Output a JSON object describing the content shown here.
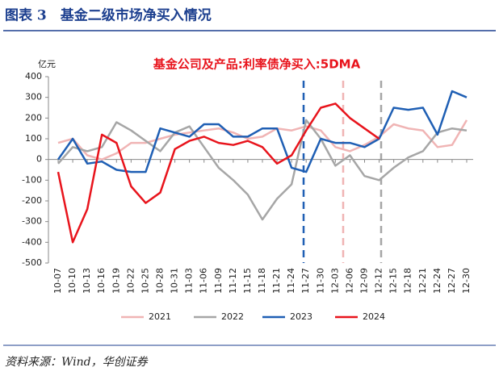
{
  "header": "图表 3　基金二级市场净买入情况",
  "source": "资料来源：Wind，华创证券",
  "chart_data": {
    "type": "line",
    "title": "基金公司及产品:利率债净买入:5DMA",
    "y_unit": "亿元",
    "categories": [
      "10-07",
      "10-10",
      "10-13",
      "10-16",
      "10-19",
      "10-22",
      "10-25",
      "10-28",
      "10-31",
      "11-03",
      "11-06",
      "11-09",
      "11-12",
      "11-15",
      "11-18",
      "11-21",
      "11-24",
      "11-27",
      "11-30",
      "12-03",
      "12-06",
      "12-09",
      "12-12",
      "12-15",
      "12-18",
      "12-21",
      "12-24",
      "12-27",
      "12-30"
    ],
    "ylim": [
      -500,
      400
    ],
    "yticks": [
      -500,
      -400,
      -300,
      -200,
      -100,
      0,
      100,
      200,
      300,
      400
    ],
    "series": [
      {
        "name": "2021",
        "color": "#f0b4b4",
        "values": [
          80,
          100,
          20,
          0,
          30,
          80,
          80,
          100,
          120,
          130,
          140,
          150,
          130,
          100,
          110,
          150,
          140,
          160,
          140,
          60,
          40,
          70,
          110,
          170,
          150,
          140,
          60,
          70,
          190
        ]
      },
      {
        "name": "2022",
        "color": "#a6a6a6",
        "values": [
          -20,
          60,
          40,
          60,
          180,
          140,
          90,
          40,
          130,
          160,
          60,
          -40,
          -100,
          -170,
          -290,
          -190,
          -120,
          190,
          100,
          -30,
          20,
          -80,
          -100,
          -40,
          10,
          40,
          130,
          150,
          140
        ]
      },
      {
        "name": "2023",
        "color": "#1f5fb4",
        "values": [
          0,
          100,
          -20,
          -10,
          -50,
          -60,
          -60,
          150,
          130,
          110,
          170,
          170,
          110,
          110,
          150,
          150,
          -40,
          -60,
          100,
          80,
          80,
          60,
          100,
          250,
          240,
          250,
          120,
          330,
          300
        ]
      },
      {
        "name": "2024",
        "color": "#e8141c",
        "values": [
          -60,
          -400,
          -240,
          120,
          80,
          -130,
          -210,
          -160,
          50,
          90,
          110,
          80,
          70,
          90,
          60,
          -20,
          20,
          140,
          250,
          270,
          200,
          150,
          100,
          null,
          null,
          null,
          null,
          null,
          null
        ]
      }
    ]
  }
}
